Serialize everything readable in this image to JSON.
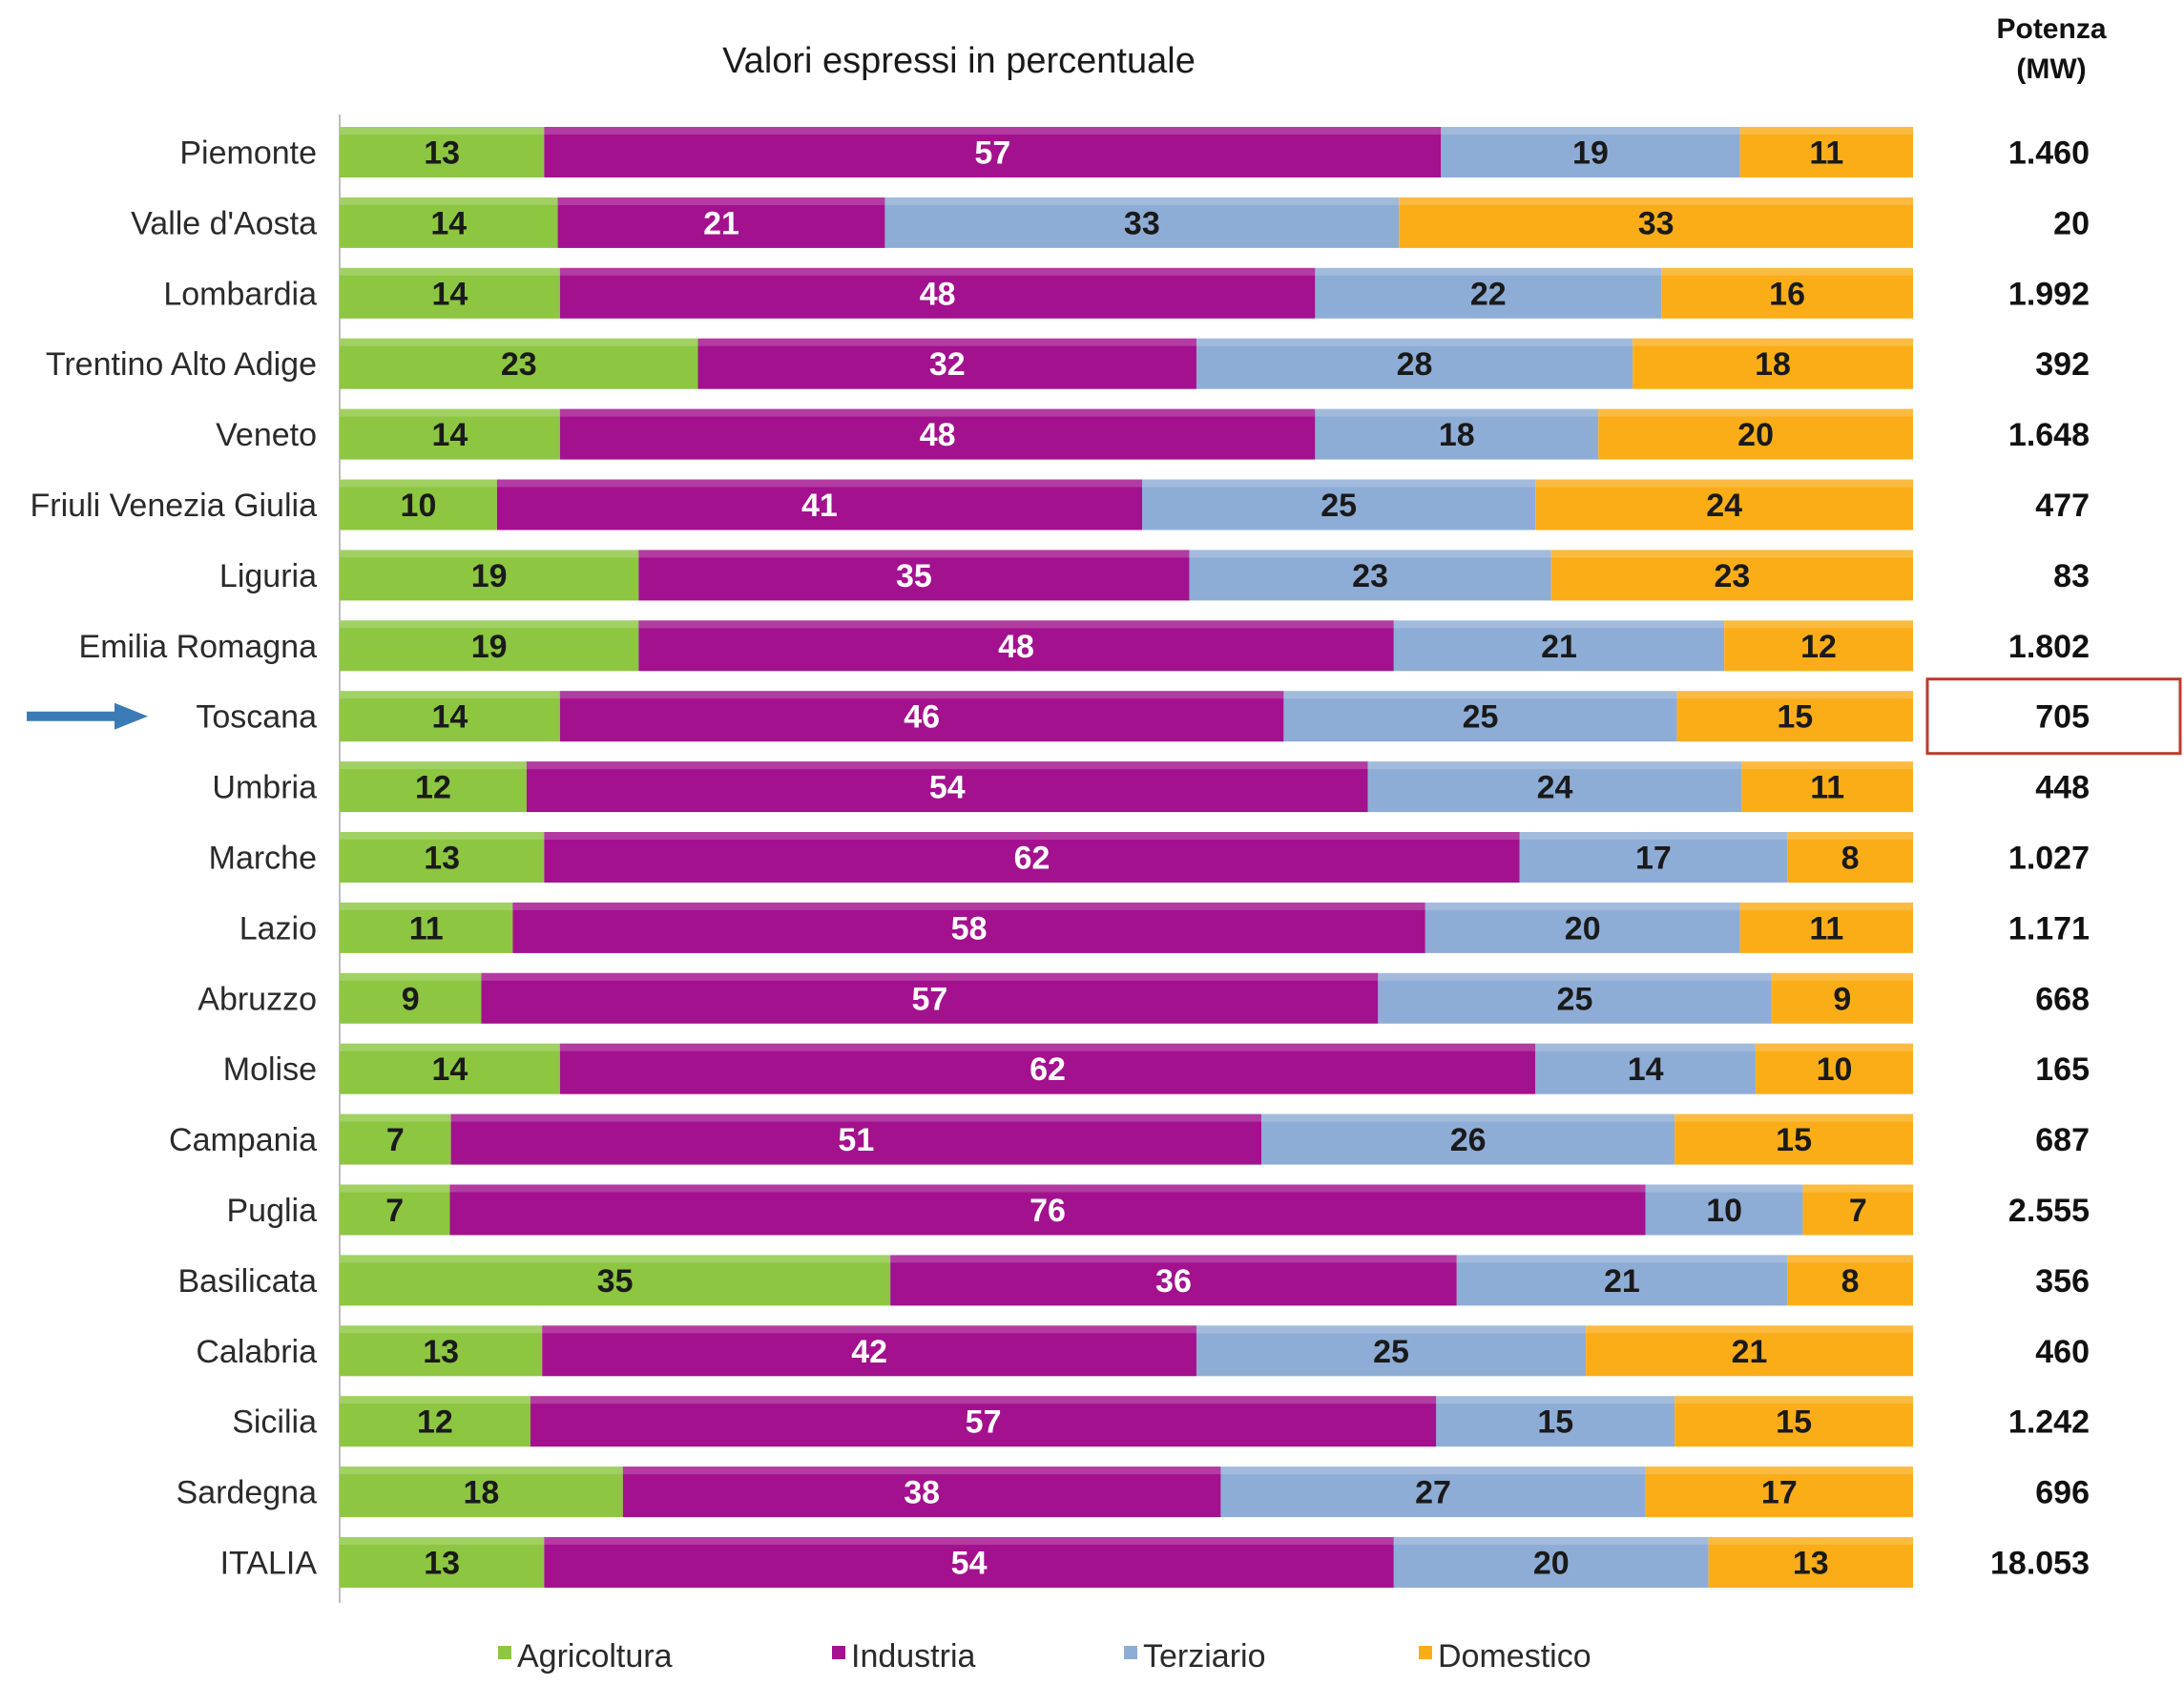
{
  "chart_data": {
    "type": "bar",
    "orientation": "horizontal",
    "stacked": true,
    "title": "Valori espressi in percentuale",
    "xlim": [
      0,
      100
    ],
    "categories": [
      "Piemonte",
      "Valle d'Aosta",
      "Lombardia",
      "Trentino Alto Adige",
      "Veneto",
      "Friuli Venezia Giulia",
      "Liguria",
      "Emilia Romagna",
      "Toscana",
      "Umbria",
      "Marche",
      "Lazio",
      "Abruzzo",
      "Molise",
      "Campania",
      "Puglia",
      "Basilicata",
      "Calabria",
      "Sicilia",
      "Sardegna",
      "ITALIA"
    ],
    "series": [
      {
        "name": "Agricoltura",
        "color": "#8dc641",
        "label_color": "#1a1a1a",
        "values": [
          13,
          14,
          14,
          23,
          14,
          10,
          19,
          19,
          14,
          12,
          13,
          11,
          9,
          14,
          7,
          7,
          35,
          13,
          12,
          18,
          13
        ]
      },
      {
        "name": "Industria",
        "color": "#a3118e",
        "label_color": "#ffffff",
        "values": [
          57,
          21,
          48,
          32,
          48,
          41,
          35,
          48,
          46,
          54,
          62,
          58,
          57,
          62,
          51,
          76,
          36,
          42,
          57,
          38,
          54
        ]
      },
      {
        "name": "Terziario",
        "color": "#8eadd6",
        "label_color": "#1a1a1a",
        "values": [
          19,
          33,
          22,
          28,
          18,
          25,
          23,
          21,
          25,
          24,
          17,
          20,
          25,
          14,
          26,
          10,
          21,
          25,
          15,
          27,
          20
        ]
      },
      {
        "name": "Domestico",
        "color": "#fbad18",
        "label_color": "#1a1a1a",
        "values": [
          11,
          33,
          16,
          18,
          20,
          24,
          23,
          12,
          15,
          11,
          8,
          11,
          9,
          10,
          15,
          7,
          8,
          21,
          15,
          17,
          13
        ]
      }
    ],
    "power_header": [
      "Potenza",
      "(MW)"
    ],
    "power": [
      "1.460",
      "20",
      "1.992",
      "392",
      "1.648",
      "477",
      "83",
      "1.802",
      "705",
      "448",
      "1.027",
      "1.171",
      "668",
      "165",
      "687",
      "2.555",
      "356",
      "460",
      "1.242",
      "696",
      "18.053"
    ],
    "highlight": {
      "category": "Toscana",
      "arrow_color": "#3b7bb5",
      "box_color": "#c0392b"
    },
    "legend": {
      "position": "bottom"
    }
  }
}
